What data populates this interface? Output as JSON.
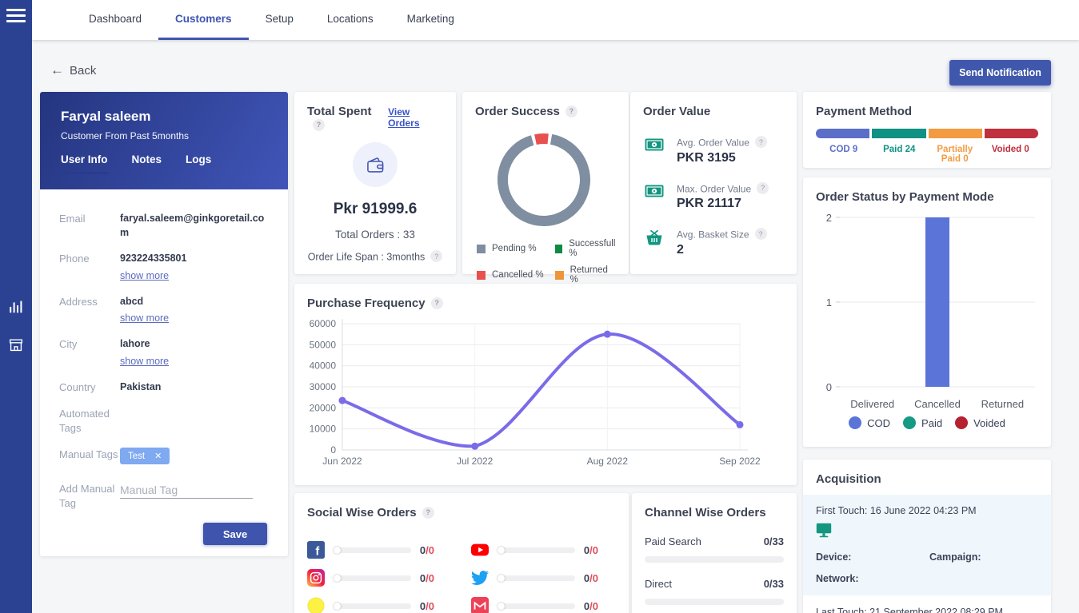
{
  "nav": {
    "items": [
      {
        "label": "Dashboard"
      },
      {
        "label": "Customers"
      },
      {
        "label": "Setup"
      },
      {
        "label": "Locations"
      },
      {
        "label": "Marketing"
      }
    ],
    "active": "Customers"
  },
  "toolbar": {
    "back_label": "Back",
    "send_notification_label": "Send Notification"
  },
  "customer_card": {
    "name": "Faryal saleem",
    "subtitle": "Customer From Past 5months",
    "tabs": [
      "User Info",
      "Notes",
      "Logs"
    ],
    "fields": [
      {
        "label": "Email",
        "value": "faryal.saleem@ginkgoretail.com"
      },
      {
        "label": "Phone",
        "value": "923224335801"
      },
      {
        "label": "Address",
        "value": "abcd"
      },
      {
        "label": "City",
        "value": "lahore"
      },
      {
        "label": "Country",
        "value": "Pakistan"
      }
    ],
    "show_more_label": "show more",
    "automated_tags_label": "Automated Tags",
    "manual_tags_label": "Manual Tags",
    "manual_tag_chip": "Test",
    "add_manual_tag_label": "Add Manual Tag",
    "manual_tag_placeholder": "Manual Tag",
    "save_label": "Save"
  },
  "total_spent": {
    "title": "Total Spent",
    "view_orders_label": "View Orders",
    "amount": "Pkr 91999.6",
    "total_orders": "Total Orders : 33",
    "order_life_span": "Order Life Span : 3months"
  },
  "order_value": {
    "title": "Order Value",
    "items": [
      {
        "icon": "banknote",
        "label": "Avg. Order Value",
        "value": "PKR 3195"
      },
      {
        "icon": "banknote",
        "label": "Max. Order Value",
        "value": "PKR 21117"
      },
      {
        "icon": "basket",
        "label": "Avg. Basket Size",
        "value": "2"
      }
    ]
  },
  "payment_method": {
    "title": "Payment Method",
    "segments": [
      {
        "label": "COD",
        "count": 9,
        "color": "#5b6fc9"
      },
      {
        "label": "Paid",
        "count": 24,
        "color": "#0f9184"
      },
      {
        "label": "Partially Paid",
        "count": 0,
        "color": "#f29b40"
      },
      {
        "label": "Voided",
        "count": 0,
        "color": "#bf2f3e"
      }
    ]
  },
  "social_orders": {
    "title": "Social Wise Orders",
    "rows": [
      {
        "network": "facebook",
        "value": "0",
        "total": "0"
      },
      {
        "network": "youtube",
        "value": "0",
        "total": "0"
      },
      {
        "network": "instagram",
        "value": "0",
        "total": "0"
      },
      {
        "network": "twitter",
        "value": "0",
        "total": "0"
      },
      {
        "network": "snapchat",
        "value": "0",
        "total": "0"
      },
      {
        "network": "gmail",
        "value": "0",
        "total": "0"
      }
    ]
  },
  "channel_orders": {
    "title": "Channel Wise Orders",
    "rows": [
      {
        "label": "Paid Search",
        "value": "0",
        "total": "33"
      },
      {
        "label": "Direct",
        "value": "0",
        "total": "33"
      }
    ]
  },
  "acquisition": {
    "title": "Acquisition",
    "first_touch_label": "First Touch: 16 June 2022 04:23 PM",
    "device_label": "Device:",
    "campaign_label": "Campaign:",
    "network_label": "Network:",
    "last_touch_label": "Last Touch: 21 September 2022 08:29 PM"
  },
  "chart_data": [
    {
      "id": "order_success",
      "type": "pie",
      "donut": true,
      "title": "Order Success",
      "labels": [
        "Pending %",
        "Successfull %",
        "Cancelled %",
        "Returned %"
      ],
      "values": [
        93.9,
        0,
        6.1,
        0
      ],
      "colors": [
        "#7f8ea0",
        "#0f8a44",
        "#e8504f",
        "#ef9439"
      ],
      "start_angle": -104,
      "draw_order": [
        2,
        0,
        1,
        3
      ],
      "legend_position": "bottom"
    },
    {
      "id": "purchase_frequency",
      "type": "line",
      "title": "Purchase Frequency",
      "x": [
        "Jun 2022",
        "Jul 2022",
        "Aug 2022",
        "Sep 2022"
      ],
      "values": [
        23500,
        1800,
        55000,
        12000
      ],
      "ylim": [
        0,
        60000
      ],
      "ytick_step": 10000,
      "color": "#7a6be8",
      "grid": true
    },
    {
      "id": "order_status_by_payment_mode",
      "type": "bar",
      "title": "Order Status by Payment Mode",
      "categories": [
        "Delivered",
        "Cancelled",
        "Returned"
      ],
      "series": [
        {
          "name": "COD",
          "color": "#5b74d8",
          "values": [
            0,
            2,
            0
          ]
        },
        {
          "name": "Paid",
          "color": "#169a86",
          "values": [
            0,
            0,
            0
          ]
        },
        {
          "name": "Voided",
          "color": "#b6212f",
          "values": [
            0,
            0,
            0
          ]
        }
      ],
      "ylim": [
        0,
        2
      ],
      "yticks": [
        0,
        1,
        2
      ],
      "legend_position": "bottom"
    }
  ]
}
